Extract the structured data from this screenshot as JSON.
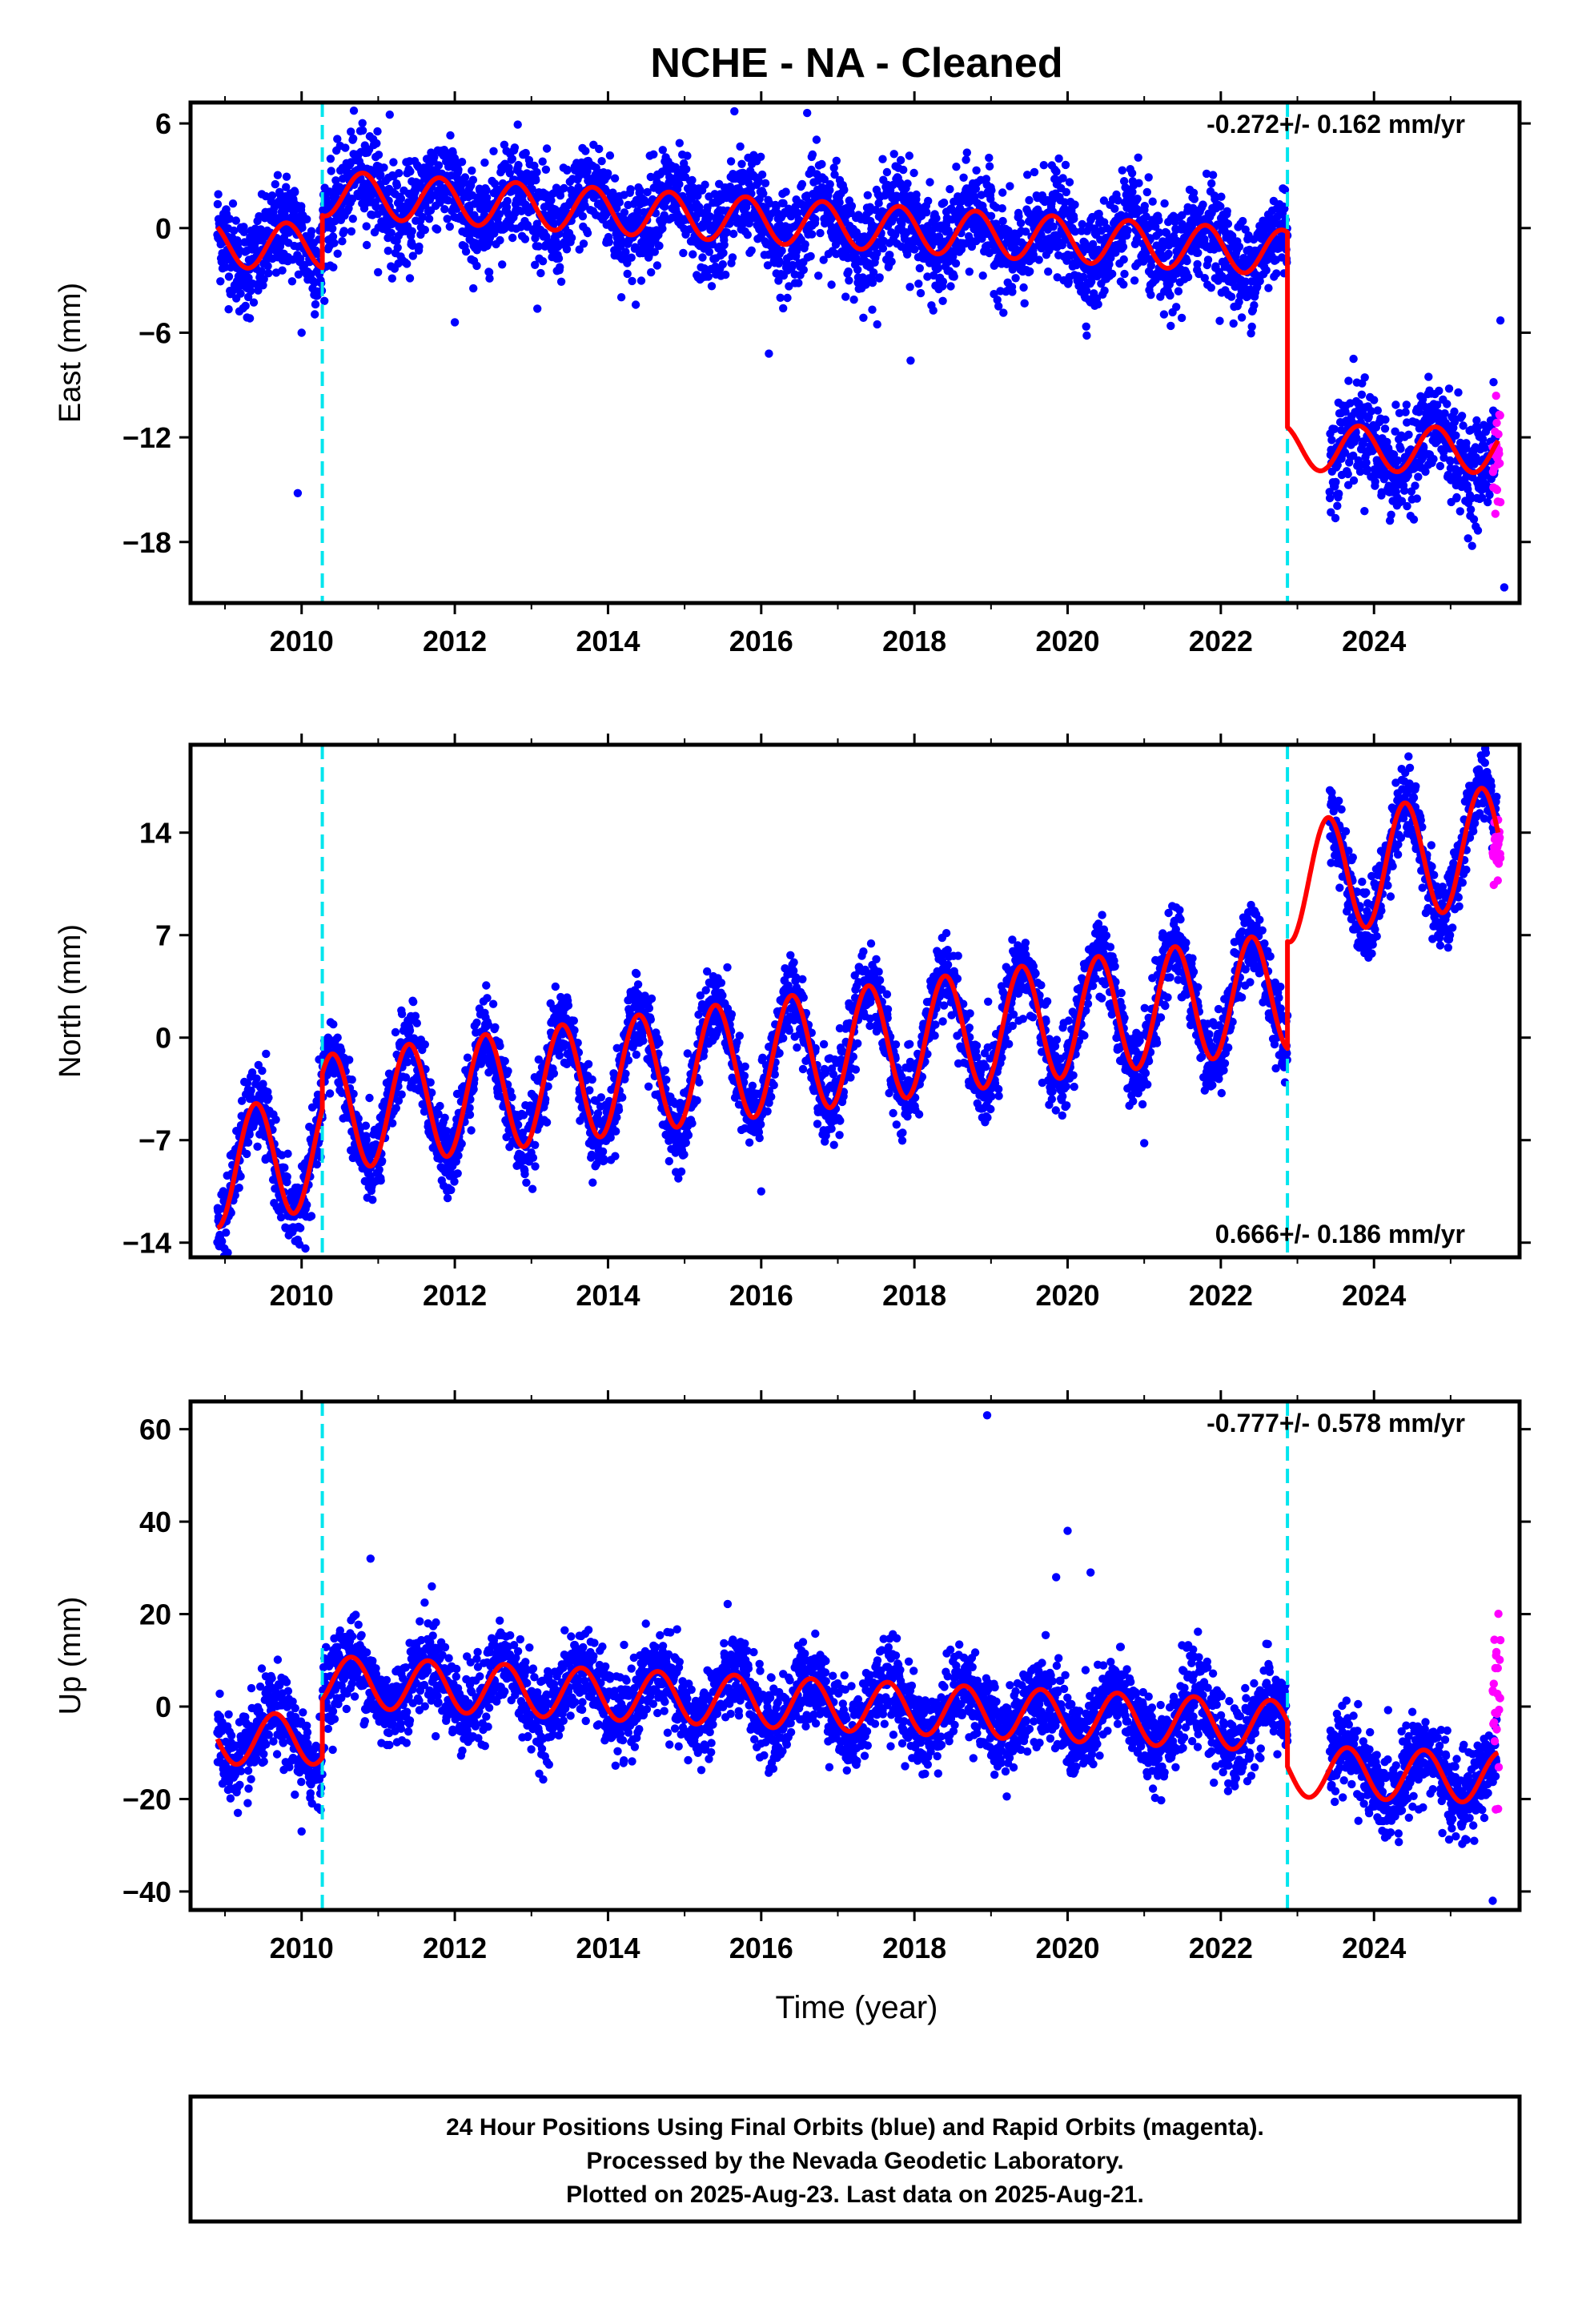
{
  "title": "NCHE  - NA - Cleaned",
  "xlabel": "Time (year)",
  "colors": {
    "final_orbits": "#0000ff",
    "rapid_orbits": "#ff00ff",
    "model": "#ff0000",
    "offset_line": "#00e5ee"
  },
  "footer": {
    "line1": "24 Hour Positions Using Final Orbits (blue) and Rapid Orbits (magenta).",
    "line2": "Processed by the Nevada Geodetic Laboratory.",
    "line3": "Plotted on 2025-Aug-23. Last data on 2025-Aug-21."
  },
  "chart_data": [
    {
      "type": "scatter",
      "ylabel": "East (mm)",
      "rate_label": "-0.272+/- 0.162 mm/yr",
      "rate_position": "top-right",
      "xlim": [
        2008.55,
        2025.9
      ],
      "ylim": [
        -21.5,
        7.2
      ],
      "xticks": [
        2010,
        2012,
        2014,
        2016,
        2018,
        2020,
        2022,
        2024
      ],
      "yticks": [
        6,
        0,
        -6,
        -12,
        -18
      ],
      "offsets": [
        2010.27,
        2022.87
      ],
      "model": {
        "segments": [
          {
            "start": 2008.9,
            "end": 2010.27,
            "base": -1.0,
            "trend": 0.0,
            "amp": 1.3,
            "phase": 0.55
          },
          {
            "start": 2010.27,
            "end": 2022.87,
            "base": 2.0,
            "trend": -0.272,
            "amp": 1.3,
            "phase": 0.55
          },
          {
            "start": 2022.87,
            "end": 2025.62,
            "base": -12.6,
            "trend": -0.05,
            "amp": 1.3,
            "phase": 0.55
          }
        ]
      },
      "noise": 1.4,
      "outliers": [
        [
          2009.95,
          -15.2
        ],
        [
          2010.0,
          -6.0
        ],
        [
          2011.15,
          6.5
        ],
        [
          2015.65,
          6.7
        ],
        [
          2016.1,
          -7.2
        ],
        [
          2016.6,
          6.6
        ],
        [
          2017.95,
          -7.6
        ],
        [
          2012.0,
          -5.4
        ],
        [
          2025.65,
          -5.3
        ],
        [
          2025.7,
          -20.6
        ]
      ],
      "rapid": {
        "start": 2025.55,
        "end": 2025.65,
        "center": -13.0,
        "spread": 3.0
      }
    },
    {
      "type": "scatter",
      "ylabel": "North (mm)",
      "rate_label": "0.666+/- 0.186 mm/yr",
      "rate_position": "bottom-right",
      "xlim": [
        2008.55,
        2025.9
      ],
      "ylim": [
        -15.0,
        20.0
      ],
      "xticks": [
        2010,
        2012,
        2014,
        2016,
        2018,
        2020,
        2022,
        2024
      ],
      "yticks": [
        14,
        7,
        0,
        -7,
        -14
      ],
      "offsets": [
        2010.27,
        2022.87
      ],
      "model": {
        "segments": [
          {
            "start": 2008.9,
            "end": 2010.27,
            "base": -9.0,
            "trend": 1.0,
            "amp": 4.0,
            "phase": 0.15
          },
          {
            "start": 2010.27,
            "end": 2022.87,
            "base": -5.2,
            "trend": 0.666,
            "amp": 4.0,
            "phase": 0.15
          },
          {
            "start": 2022.87,
            "end": 2025.62,
            "base": 10.5,
            "trend": 1.0,
            "amp": 4.0,
            "phase": 0.15
          }
        ]
      },
      "noise": 1.3,
      "outliers": [
        [
          2009.95,
          -13.8
        ],
        [
          2010.05,
          -14.4
        ],
        [
          2013.8,
          -9.9
        ],
        [
          2016.0,
          -10.5
        ],
        [
          2021.0,
          -7.2
        ],
        [
          2024.45,
          19.2
        ]
      ],
      "rapid": {
        "start": 2025.55,
        "end": 2025.65,
        "center": 13.5,
        "spread": 2.5
      }
    },
    {
      "type": "scatter",
      "ylabel": "Up (mm)",
      "rate_label": "-0.777+/- 0.578 mm/yr",
      "rate_position": "top-right",
      "xlim": [
        2008.55,
        2025.9
      ],
      "ylim": [
        -44,
        66
      ],
      "xticks": [
        2010,
        2012,
        2014,
        2016,
        2018,
        2020,
        2022,
        2024
      ],
      "yticks": [
        60,
        40,
        20,
        0,
        -20,
        -40
      ],
      "offsets": [
        2010.27,
        2022.87
      ],
      "model": {
        "segments": [
          {
            "start": 2008.9,
            "end": 2010.27,
            "base": -7.0,
            "trend": 0.0,
            "amp": 5.5,
            "phase": 0.4
          },
          {
            "start": 2010.27,
            "end": 2022.87,
            "base": 5.5,
            "trend": -0.777,
            "amp": 5.5,
            "phase": 0.4
          },
          {
            "start": 2022.87,
            "end": 2025.62,
            "base": -14.0,
            "trend": -0.5,
            "amp": 5.5,
            "phase": 0.4
          }
        ]
      },
      "noise": 4.5,
      "outliers": [
        [
          2018.95,
          63.0
        ],
        [
          2020.0,
          38.0
        ],
        [
          2010.9,
          32.0
        ],
        [
          2011.7,
          26.0
        ],
        [
          2019.85,
          28.0
        ],
        [
          2020.3,
          29.0
        ],
        [
          2025.55,
          -42.0
        ],
        [
          2010.0,
          -27.0
        ]
      ],
      "rapid": {
        "start": 2025.55,
        "end": 2025.65,
        "center": -2.0,
        "spread": 16.0
      }
    }
  ]
}
